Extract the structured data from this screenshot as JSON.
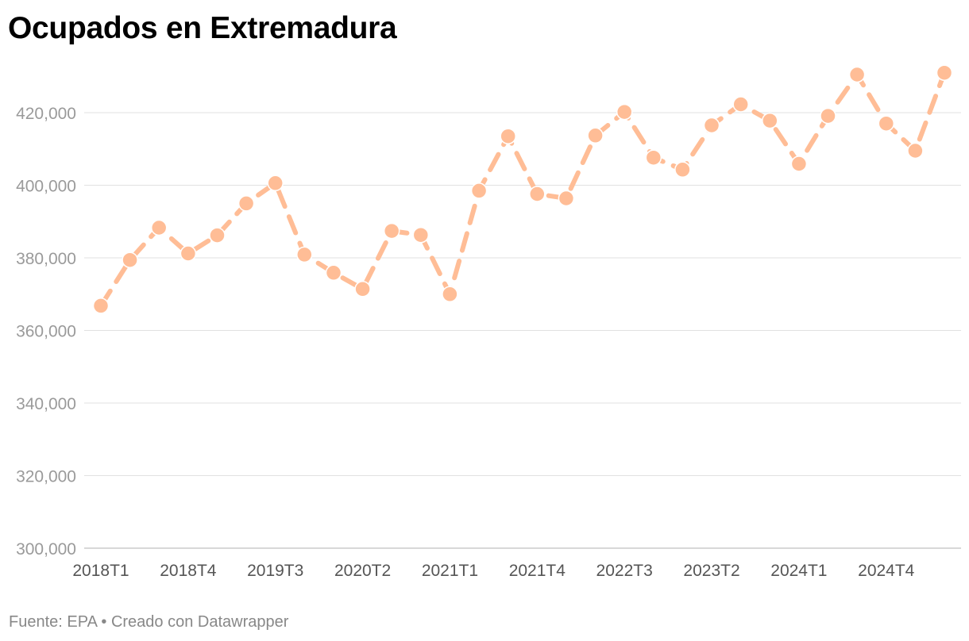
{
  "title": "Ocupados en Extremadura",
  "footer": {
    "source": "Fuente: EPA",
    "separator": "•",
    "credit": "Creado con Datawrapper"
  },
  "colors": {
    "series": "#ffbd96",
    "grid": "#e1e1e1",
    "axis": "#cccccc",
    "ytick": "#9a9a9a",
    "xtick": "#555555"
  },
  "chart_data": {
    "type": "line",
    "line_style": "dashed",
    "markers": true,
    "grid": true,
    "ylim": [
      300000,
      430000
    ],
    "yticks": [
      300000,
      320000,
      340000,
      360000,
      380000,
      400000,
      420000
    ],
    "ytick_labels": [
      "300,000",
      "320,000",
      "340,000",
      "360,000",
      "380,000",
      "400,000",
      "420,000"
    ],
    "x": [
      "2018T1",
      "2018T2",
      "2018T3",
      "2018T4",
      "2019T1",
      "2019T2",
      "2019T3",
      "2019T4",
      "2020T1",
      "2020T2",
      "2020T3",
      "2020T4",
      "2021T1",
      "2021T2",
      "2021T3",
      "2021T4",
      "2022T1",
      "2022T2",
      "2022T3",
      "2022T4",
      "2023T1",
      "2023T2",
      "2023T3",
      "2023T4",
      "2024T1",
      "2024T2",
      "2024T3",
      "2024T4",
      "2025T1",
      "2025T2"
    ],
    "xtick_labels": [
      "2018T1",
      "2018T4",
      "2019T3",
      "2020T2",
      "2021T1",
      "2021T4",
      "2022T3",
      "2023T2",
      "2024T1",
      "2024T4"
    ],
    "series": [
      {
        "values": [
          366800,
          379400,
          388300,
          381200,
          386200,
          395000,
          400600,
          380900,
          375900,
          371400,
          387400,
          386300,
          370000,
          398500,
          413500,
          397600,
          396400,
          413700,
          420200,
          407600,
          404300,
          416500,
          422300,
          417800,
          405900,
          419100,
          430500,
          417000,
          409500,
          431000
        ]
      }
    ]
  }
}
